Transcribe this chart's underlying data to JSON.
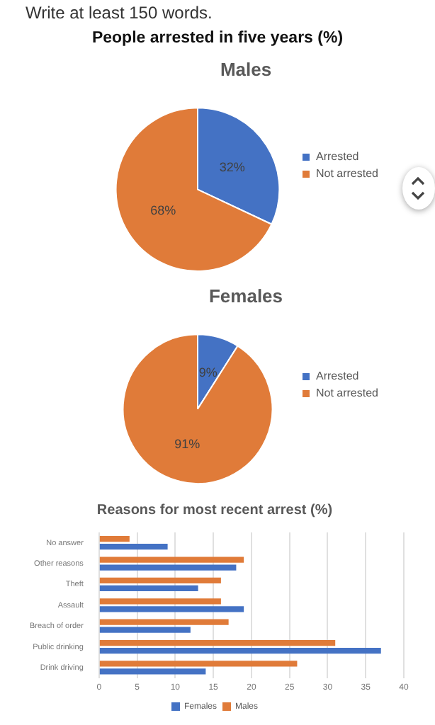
{
  "chart_data": [
    {
      "type": "pie",
      "title": "Males",
      "annotations": [
        "Write at least 150 words.",
        "People arrested in five years (%)"
      ],
      "categories": [
        "Arrested",
        "Not arrested"
      ],
      "values": [
        32,
        68
      ],
      "colors": [
        "#4472c4",
        "#e07b39"
      ],
      "value_labels": [
        "32%",
        "68%"
      ],
      "legend": "right"
    },
    {
      "type": "pie",
      "title": "Females",
      "categories": [
        "Arrested",
        "Not arrested"
      ],
      "values": [
        9,
        91
      ],
      "colors": [
        "#4472c4",
        "#e07b39"
      ],
      "value_labels": [
        "9%",
        "91%"
      ],
      "legend": "right"
    },
    {
      "type": "bar",
      "orientation": "horizontal",
      "title": "Reasons for most recent arrest (%)",
      "categories": [
        "No answer",
        "Other reasons",
        "Theft",
        "Assault",
        "Breach of order",
        "Public drinking",
        "Drink driving"
      ],
      "series": [
        {
          "name": "Females",
          "color": "#4472c4",
          "values": [
            9,
            18,
            13,
            19,
            12,
            37,
            14
          ]
        },
        {
          "name": "Males",
          "color": "#e07b39",
          "values": [
            4,
            19,
            16,
            16,
            17,
            31,
            26
          ]
        }
      ],
      "xlim": [
        0,
        40
      ],
      "xticks": [
        0,
        5,
        10,
        15,
        20,
        25,
        30,
        35,
        40
      ],
      "grid": "x",
      "legend": "bottom"
    }
  ]
}
